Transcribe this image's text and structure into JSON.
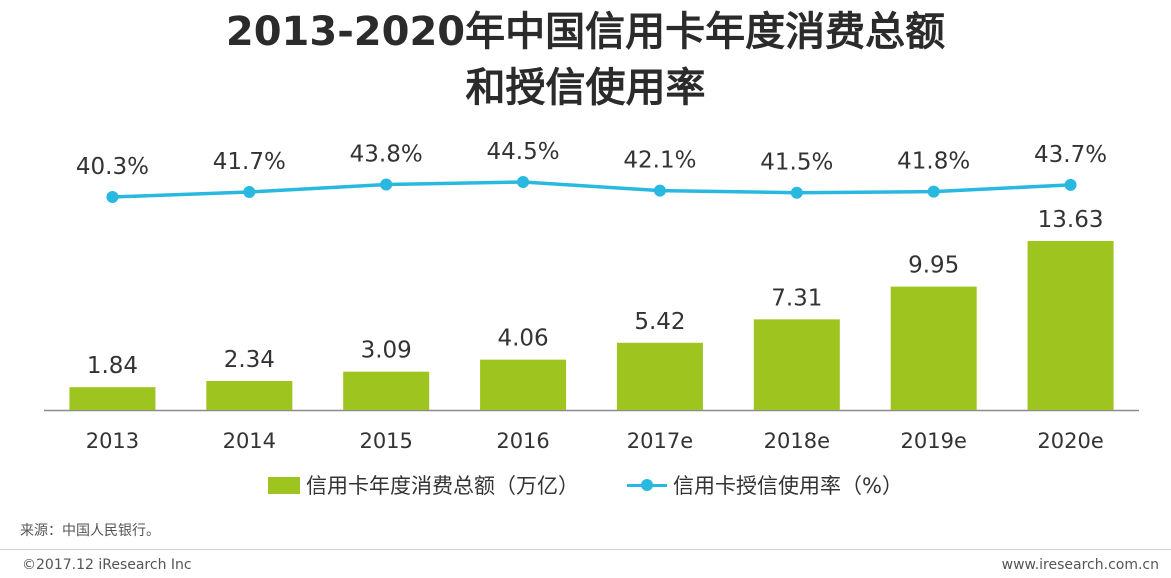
{
  "title": {
    "line1": "2013-2020年中国信用卡年度消费总额",
    "line2": "和授信使用率"
  },
  "chart_data": {
    "type": "bar",
    "categories": [
      "2013",
      "2014",
      "2015",
      "2016",
      "2017e",
      "2018e",
      "2019e",
      "2020e"
    ],
    "series": [
      {
        "name": "信用卡年度消费总额（万亿）",
        "type": "bar",
        "values": [
          1.84,
          2.34,
          3.09,
          4.06,
          5.42,
          7.31,
          9.95,
          13.63
        ],
        "labels": [
          "1.84",
          "2.34",
          "3.09",
          "4.06",
          "5.42",
          "7.31",
          "9.95",
          "13.63"
        ],
        "color": "#9dc41f"
      },
      {
        "name": "信用卡授信使用率（%）",
        "type": "line",
        "values": [
          40.3,
          41.7,
          43.8,
          44.5,
          42.1,
          41.5,
          41.8,
          43.7
        ],
        "labels": [
          "40.3%",
          "41.7%",
          "43.8%",
          "44.5%",
          "42.1%",
          "41.5%",
          "41.8%",
          "43.7%"
        ],
        "color": "#29b9e0"
      }
    ],
    "legend_position": "bottom",
    "grid": false
  },
  "source": "来源：中国人民银行。",
  "footer": {
    "left": "©2017.12 iResearch Inc",
    "right": "www.iresearch.com.cn"
  }
}
